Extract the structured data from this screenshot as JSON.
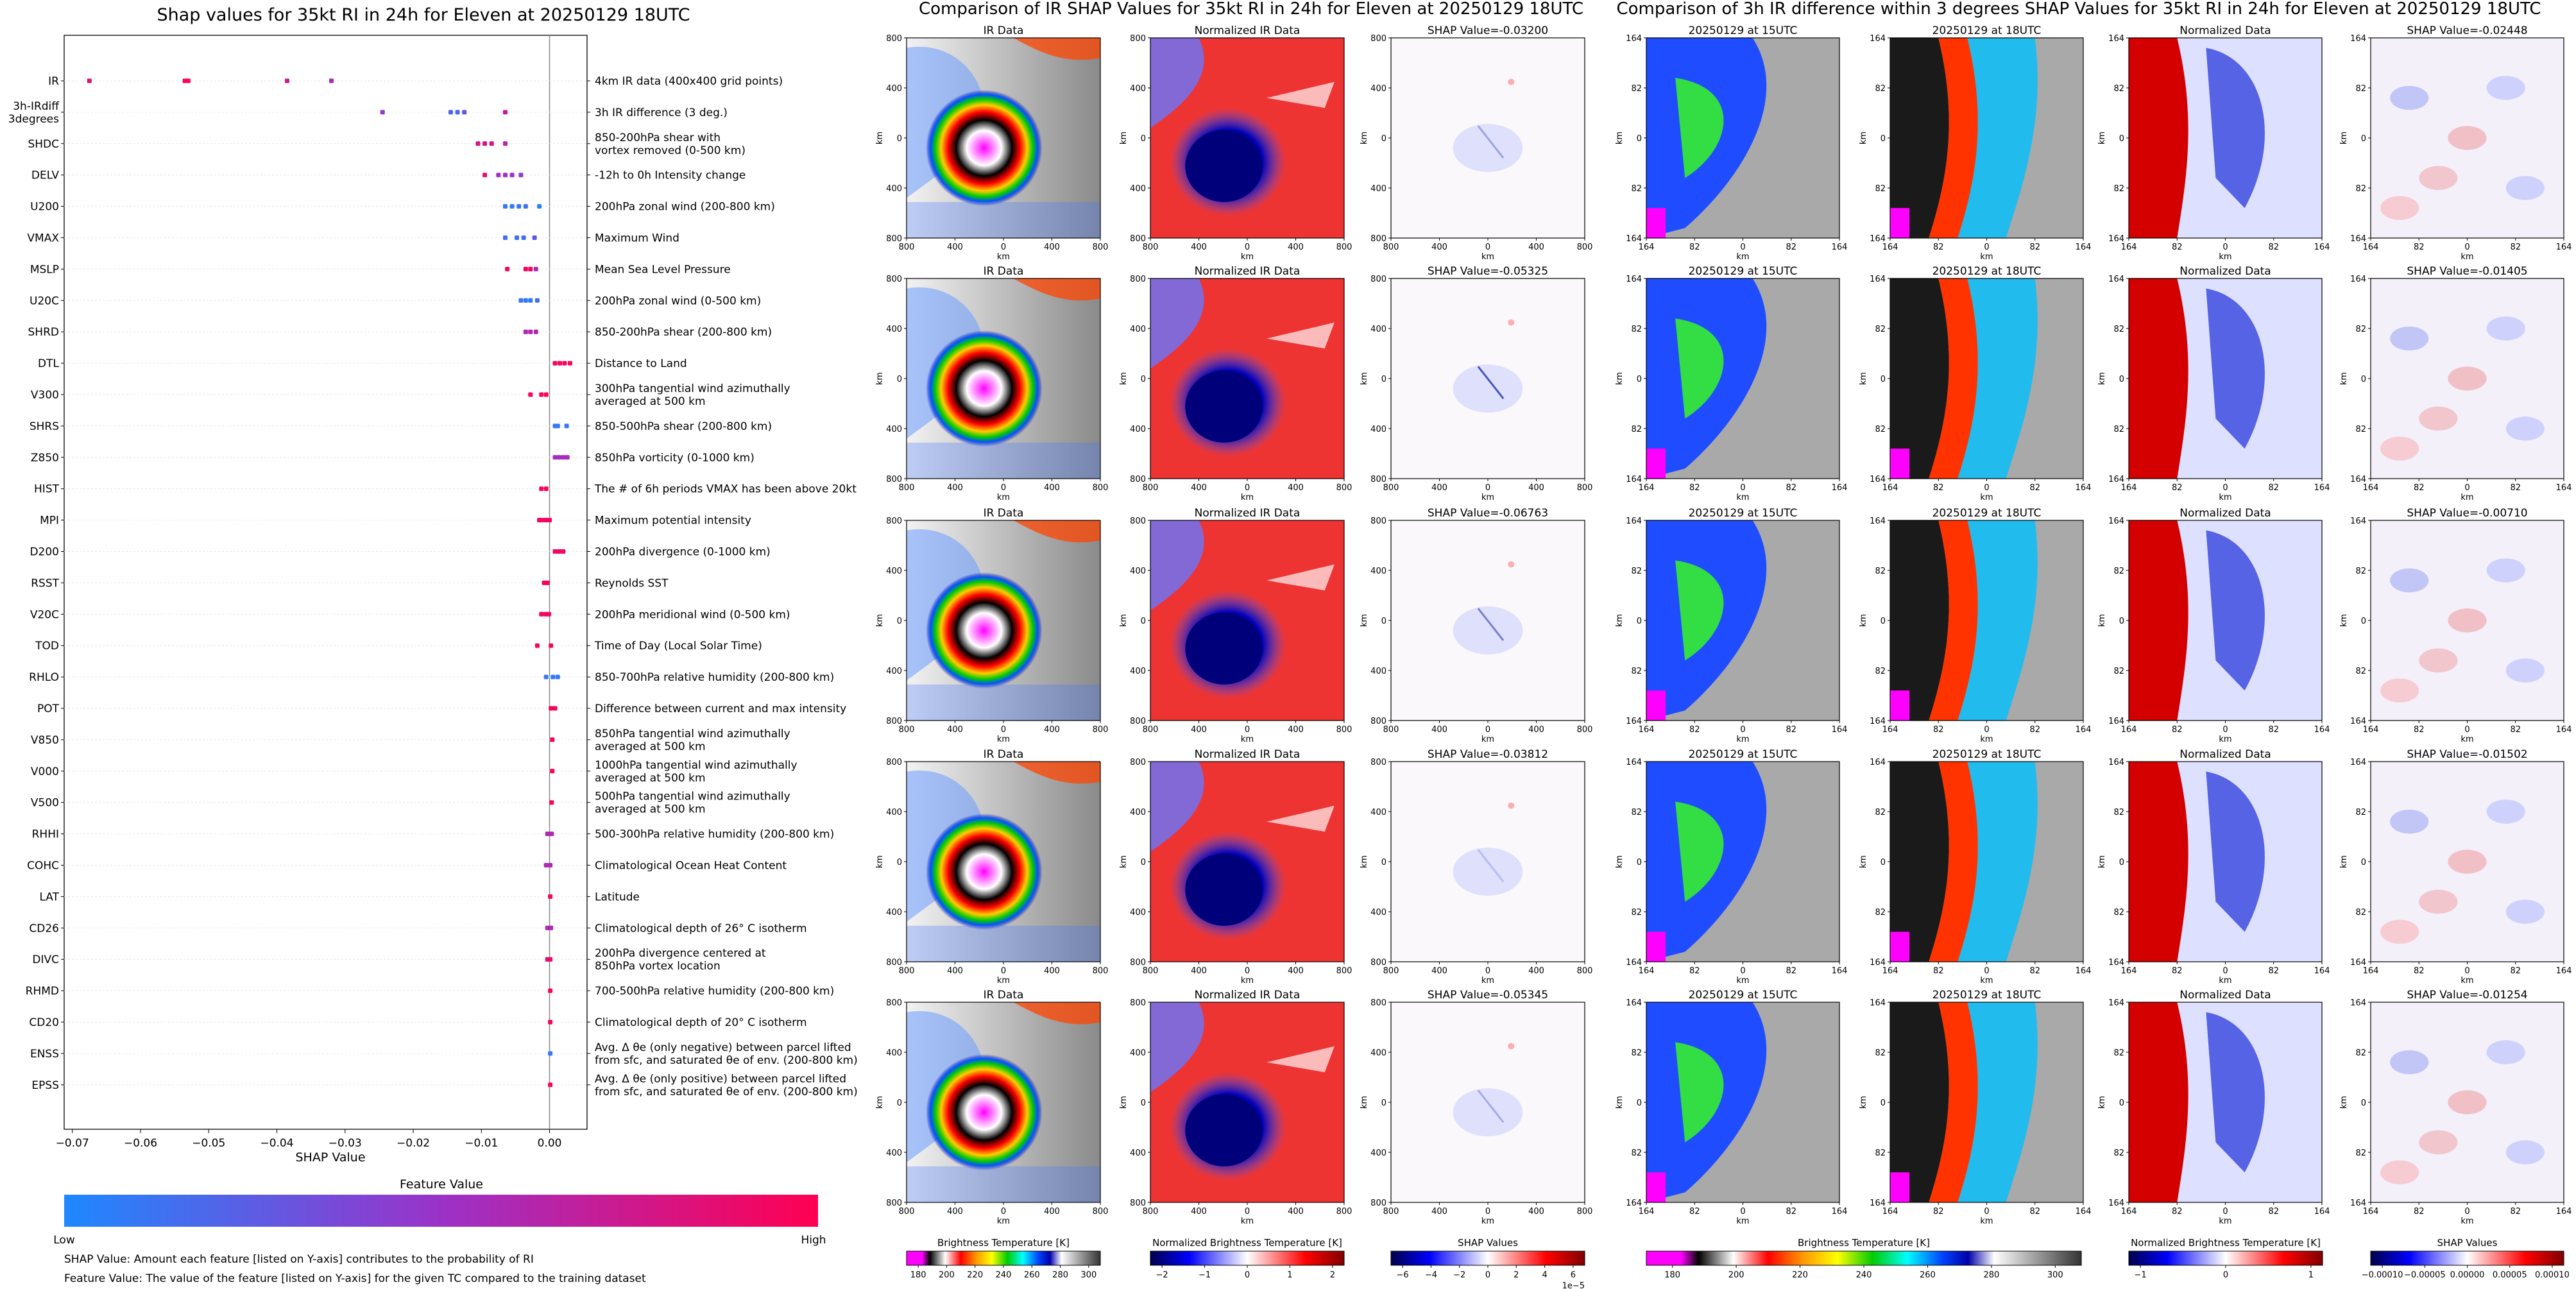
{
  "shap_panel": {
    "title": "Shap values for 35kt RI in 24h for Eleven at 20250129 18UTC",
    "xlabel": "SHAP Value",
    "xticks": [
      "−0.07",
      "−0.06",
      "−0.05",
      "−0.04",
      "−0.03",
      "−0.02",
      "−0.01",
      "0.00"
    ],
    "colorbar_title": "Feature Value",
    "colorbar_low": "Low",
    "colorbar_high": "High",
    "note1": "SHAP Value: Amount each feature [listed on Y-axis] contributes to the probability of RI",
    "note2": "Feature Value: The value of the feature [listed on Y-axis] for the given TC compared to the training dataset",
    "colors": {
      "low": "#1e88ff",
      "mid": "#9b32c8",
      "high": "#ff0052"
    }
  },
  "chart_data": [
    {
      "type": "scatter",
      "title": "Shap values for 35kt RI in 24h for Eleven at 20250129 18UTC",
      "xlabel": "SHAP Value",
      "ylabel": "",
      "xlim": [
        -0.0712,
        0.0055
      ],
      "grid": false,
      "features": [
        {
          "name": "IR",
          "desc": "4km IR data (400x400 grid points)",
          "shap": [
            -0.0675,
            -0.0535,
            -0.053,
            -0.0385,
            -0.032
          ],
          "fv": [
            0.85,
            0.95,
            0.95,
            0.75,
            0.6
          ]
        },
        {
          "name": "3h-IRdiff\n3degrees",
          "desc": "3h IR difference (3 deg.)",
          "shap": [
            -0.0245,
            -0.0145,
            -0.0135,
            -0.0125,
            -0.0065
          ],
          "fv": [
            0.45,
            0.2,
            0.15,
            0.3,
            0.7
          ]
        },
        {
          "name": "SHDC",
          "desc": "850-200hPa shear with\nvortex removed (0-500 km)",
          "shap": [
            -0.0105,
            -0.0095,
            -0.0085,
            -0.0065
          ],
          "fv": [
            0.8,
            0.8,
            0.75,
            0.65
          ]
        },
        {
          "name": "DELV",
          "desc": "-12h to 0h Intensity change",
          "shap": [
            -0.0095,
            -0.0075,
            -0.0065,
            -0.0055,
            -0.0042
          ],
          "fv": [
            0.85,
            0.5,
            0.5,
            0.5,
            0.45
          ]
        },
        {
          "name": "U200",
          "desc": "200hPa zonal wind (200-800 km)",
          "shap": [
            -0.0065,
            -0.0055,
            -0.0045,
            -0.0035,
            -0.0015
          ],
          "fv": [
            0.1,
            0.1,
            0.1,
            0.15,
            0.05
          ]
        },
        {
          "name": "VMAX",
          "desc": "Maximum Wind",
          "shap": [
            -0.0065,
            -0.0048,
            -0.0038,
            -0.0022
          ],
          "fv": [
            0.15,
            0.15,
            0.15,
            0.25
          ]
        },
        {
          "name": "MSLP",
          "desc": "Mean Sea Level Pressure",
          "shap": [
            -0.0062,
            -0.0035,
            -0.0028,
            -0.002
          ],
          "fv": [
            0.95,
            0.95,
            0.95,
            0.55
          ]
        },
        {
          "name": "U20C",
          "desc": "200hPa zonal wind (0-500 km)",
          "shap": [
            -0.0042,
            -0.0035,
            -0.0028,
            -0.0018
          ],
          "fv": [
            0.1,
            0.1,
            0.1,
            0.15
          ]
        },
        {
          "name": "SHRD",
          "desc": "850-200hPa shear (200-800 km)",
          "shap": [
            -0.0035,
            -0.0028,
            -0.002
          ],
          "fv": [
            0.6,
            0.6,
            0.6
          ]
        },
        {
          "name": "DTL",
          "desc": "Distance to Land",
          "shap": [
            0.0008,
            0.0015,
            0.0022,
            0.003
          ],
          "fv": [
            0.95,
            0.95,
            0.95,
            0.95
          ]
        },
        {
          "name": "V300",
          "desc": "300hPa tangential wind azimuthally\naveraged at 500 km",
          "shap": [
            -0.0028,
            -0.0012,
            -0.0005
          ],
          "fv": [
            0.95,
            0.95,
            0.95
          ]
        },
        {
          "name": "SHRS",
          "desc": "850-500hPa shear (200-800 km)",
          "shap": [
            0.0008,
            0.0012,
            0.0025
          ],
          "fv": [
            0.1,
            0.1,
            0.1
          ]
        },
        {
          "name": "Z850",
          "desc": "850hPa vorticity (0-1000 km)",
          "shap": [
            0.0008,
            0.0014,
            0.002,
            0.0026
          ],
          "fv": [
            0.55,
            0.55,
            0.55,
            0.55
          ]
        },
        {
          "name": "HIST",
          "desc": "The # of 6h periods VMAX has been above 20kt",
          "shap": [
            -0.0012,
            -0.0005
          ],
          "fv": [
            0.95,
            0.95
          ]
        },
        {
          "name": "MPI",
          "desc": "Maximum potential intensity",
          "shap": [
            -0.0015,
            -0.001,
            -0.0005,
            0.0
          ],
          "fv": [
            0.95,
            0.95,
            0.95,
            0.95
          ]
        },
        {
          "name": "D200",
          "desc": "200hPa divergence (0-1000 km)",
          "shap": [
            0.0008,
            0.0014,
            0.002
          ],
          "fv": [
            0.95,
            0.95,
            0.95
          ]
        },
        {
          "name": "RSST",
          "desc": "Reynolds SST",
          "shap": [
            -0.0008,
            -0.0003
          ],
          "fv": [
            0.95,
            0.95
          ]
        },
        {
          "name": "V20C",
          "desc": "200hPa meridional wind (0-500 km)",
          "shap": [
            -0.0012,
            -0.0006,
            -0.0001
          ],
          "fv": [
            0.95,
            0.95,
            0.95
          ]
        },
        {
          "name": "TOD",
          "desc": "Time of Day (Local Solar Time)",
          "shap": [
            -0.0018,
            0.0002
          ],
          "fv": [
            0.95,
            0.95
          ]
        },
        {
          "name": "RHLO",
          "desc": "850-700hPa relative humidity (200-800 km)",
          "shap": [
            -0.0005,
            0.0005,
            0.0012
          ],
          "fv": [
            0.1,
            0.1,
            0.1
          ]
        },
        {
          "name": "POT",
          "desc": "Difference between current and max intensity",
          "shap": [
            0.0002,
            0.0008
          ],
          "fv": [
            0.95,
            0.95
          ]
        },
        {
          "name": "V850",
          "desc": "850hPa tangential wind azimuthally\naveraged at 500 km",
          "shap": [
            0.0004
          ],
          "fv": [
            0.95
          ]
        },
        {
          "name": "V000",
          "desc": "1000hPa tangential wind azimuthally\naveraged at 500 km",
          "shap": [
            0.0004
          ],
          "fv": [
            0.95
          ]
        },
        {
          "name": "V500",
          "desc": "500hPa tangential wind azimuthally\naveraged at 500 km",
          "shap": [
            0.0003
          ],
          "fv": [
            0.95
          ]
        },
        {
          "name": "RHHI",
          "desc": "500-300hPa relative humidity (200-800 km)",
          "shap": [
            -0.0003,
            0.0003
          ],
          "fv": [
            0.6,
            0.6
          ]
        },
        {
          "name": "COHC",
          "desc": "Climatological Ocean Heat Content",
          "shap": [
            -0.0005,
            0.0001
          ],
          "fv": [
            0.6,
            0.6
          ]
        },
        {
          "name": "LAT",
          "desc": "Latitude",
          "shap": [
            0.0001
          ],
          "fv": [
            0.95
          ]
        },
        {
          "name": "CD26",
          "desc": "Climatological depth of 26° C isotherm",
          "shap": [
            -0.0003,
            0.0002
          ],
          "fv": [
            0.6,
            0.6
          ]
        },
        {
          "name": "DIVC",
          "desc": "200hPa divergence centered at\n850hPa vortex location",
          "shap": [
            -0.0003,
            0.0001
          ],
          "fv": [
            0.9,
            0.9
          ]
        },
        {
          "name": "RHMD",
          "desc": "700-500hPa relative humidity (200-800 km)",
          "shap": [
            0.0001
          ],
          "fv": [
            0.95
          ]
        },
        {
          "name": "CD20",
          "desc": "Climatological depth of 20° C isotherm",
          "shap": [
            0.0001
          ],
          "fv": [
            0.95
          ]
        },
        {
          "name": "ENSS",
          "desc": "Avg. Δ θe (only negative) between parcel lifted\nfrom sfc, and saturated θe of env. (200-800 km)",
          "shap": [
            0.0001
          ],
          "fv": [
            0.1
          ]
        },
        {
          "name": "EPSS",
          "desc": "Avg. Δ θe (only positive) between parcel lifted\nfrom sfc, and saturated θe of env. (200-800 km)",
          "shap": [
            0.0001
          ],
          "fv": [
            0.95
          ]
        }
      ]
    },
    {
      "type": "heatmap",
      "title": "Comparison of IR SHAP Values for 35kt RI in 24h for Eleven at 20250129 18UTC",
      "columns": [
        "IR Data",
        "Normalized IR Data",
        "SHAP Value"
      ],
      "shap_values": [
        "-0.03200",
        "-0.05325",
        "-0.06763",
        "-0.03812",
        "-0.05345"
      ],
      "shap_title_prefix": "SHAP Value=",
      "xticks": [
        "800",
        "400",
        "0",
        "400",
        "800"
      ],
      "yticks": [
        "800",
        "400",
        "0",
        "400",
        "800"
      ],
      "axis_label": "km",
      "colorbars": [
        {
          "label": "Brightness Temperature [K]",
          "ticks": [
            "180",
            "200",
            "220",
            "240",
            "260",
            "280",
            "300"
          ]
        },
        {
          "label": "Normalized Brightness Temperature [K]",
          "ticks": [
            "−2",
            "−1",
            "0",
            "1",
            "2"
          ]
        },
        {
          "label": "SHAP Values",
          "ticks": [
            "−6",
            "−4",
            "−2",
            "0",
            "2",
            "4",
            "6"
          ],
          "offset": "1e−5"
        }
      ]
    },
    {
      "type": "heatmap",
      "title": "Comparison of 3h IR difference within 3 degrees SHAP Values for 35kt RI in 24h for Eleven at 20250129 18UTC",
      "columns": [
        "20250129 at 15UTC",
        "20250129 at 18UTC",
        "Normalized Data",
        "SHAP Value"
      ],
      "shap_values": [
        "-0.02448",
        "-0.01405",
        "-0.00710",
        "-0.01502",
        "-0.01254"
      ],
      "shap_title_prefix": "SHAP Value=",
      "xticks": [
        "164",
        "82",
        "0",
        "82",
        "164"
      ],
      "yticks": [
        "164",
        "82",
        "0",
        "82",
        "164"
      ],
      "axis_label": "km",
      "colorbars": [
        {
          "label": "Brightness Temperature [K]",
          "ticks": [
            "180",
            "200",
            "220",
            "240",
            "260",
            "280",
            "300"
          ]
        },
        {
          "label": "Normalized Brightness Temperature [K]",
          "ticks": [
            "−1",
            "0",
            "1"
          ]
        },
        {
          "label": "SHAP Values",
          "ticks": [
            "−0.00010",
            "−0.00005",
            "0.00000",
            "0.00005",
            "0.00010"
          ]
        }
      ]
    }
  ]
}
